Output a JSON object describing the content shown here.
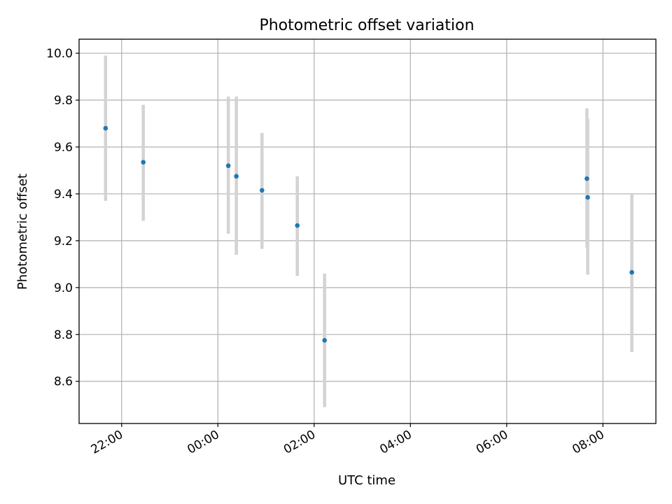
{
  "chart_data": {
    "type": "scatter",
    "title": "Photometric offset variation",
    "xlabel": "UTC time",
    "ylabel": "Photometric offset",
    "x_tick_labels": [
      "22:00",
      "00:00",
      "02:00",
      "04:00",
      "06:00",
      "08:00"
    ],
    "y_tick_labels": [
      "8.6",
      "8.8",
      "9.0",
      "9.2",
      "9.4",
      "9.6",
      "9.8",
      "10.0"
    ],
    "y_ticks": [
      8.6,
      8.8,
      9.0,
      9.2,
      9.4,
      9.6,
      9.8,
      10.0
    ],
    "xlim": [
      "21:07",
      "09:06"
    ],
    "ylim": [
      8.42,
      10.06
    ],
    "grid": true,
    "colors": {
      "points": "#1f77b4",
      "error_bars": "#d3d3d3",
      "grid": "#b0b0b0"
    },
    "series": [
      {
        "points": [
          {
            "x": "21:40",
            "y": 9.68,
            "yerr_low": 9.37,
            "yerr_high": 9.99
          },
          {
            "x": "22:27",
            "y": 9.535,
            "yerr_low": 9.285,
            "yerr_high": 9.78
          },
          {
            "x": "00:13",
            "y": 9.52,
            "yerr_low": 9.23,
            "yerr_high": 9.815
          },
          {
            "x": "00:23",
            "y": 9.475,
            "yerr_low": 9.14,
            "yerr_high": 9.815
          },
          {
            "x": "00:55",
            "y": 9.415,
            "yerr_low": 9.165,
            "yerr_high": 9.66
          },
          {
            "x": "01:39",
            "y": 9.265,
            "yerr_low": 9.05,
            "yerr_high": 9.475
          },
          {
            "x": "02:13",
            "y": 8.775,
            "yerr_low": 8.49,
            "yerr_high": 9.06
          },
          {
            "x": "07:40",
            "y": 9.465,
            "yerr_low": 9.17,
            "yerr_high": 9.765
          },
          {
            "x": "07:41",
            "y": 9.385,
            "yerr_low": 9.055,
            "yerr_high": 9.72
          },
          {
            "x": "08:36",
            "y": 9.065,
            "yerr_low": 8.725,
            "yerr_high": 9.4
          }
        ]
      }
    ]
  }
}
